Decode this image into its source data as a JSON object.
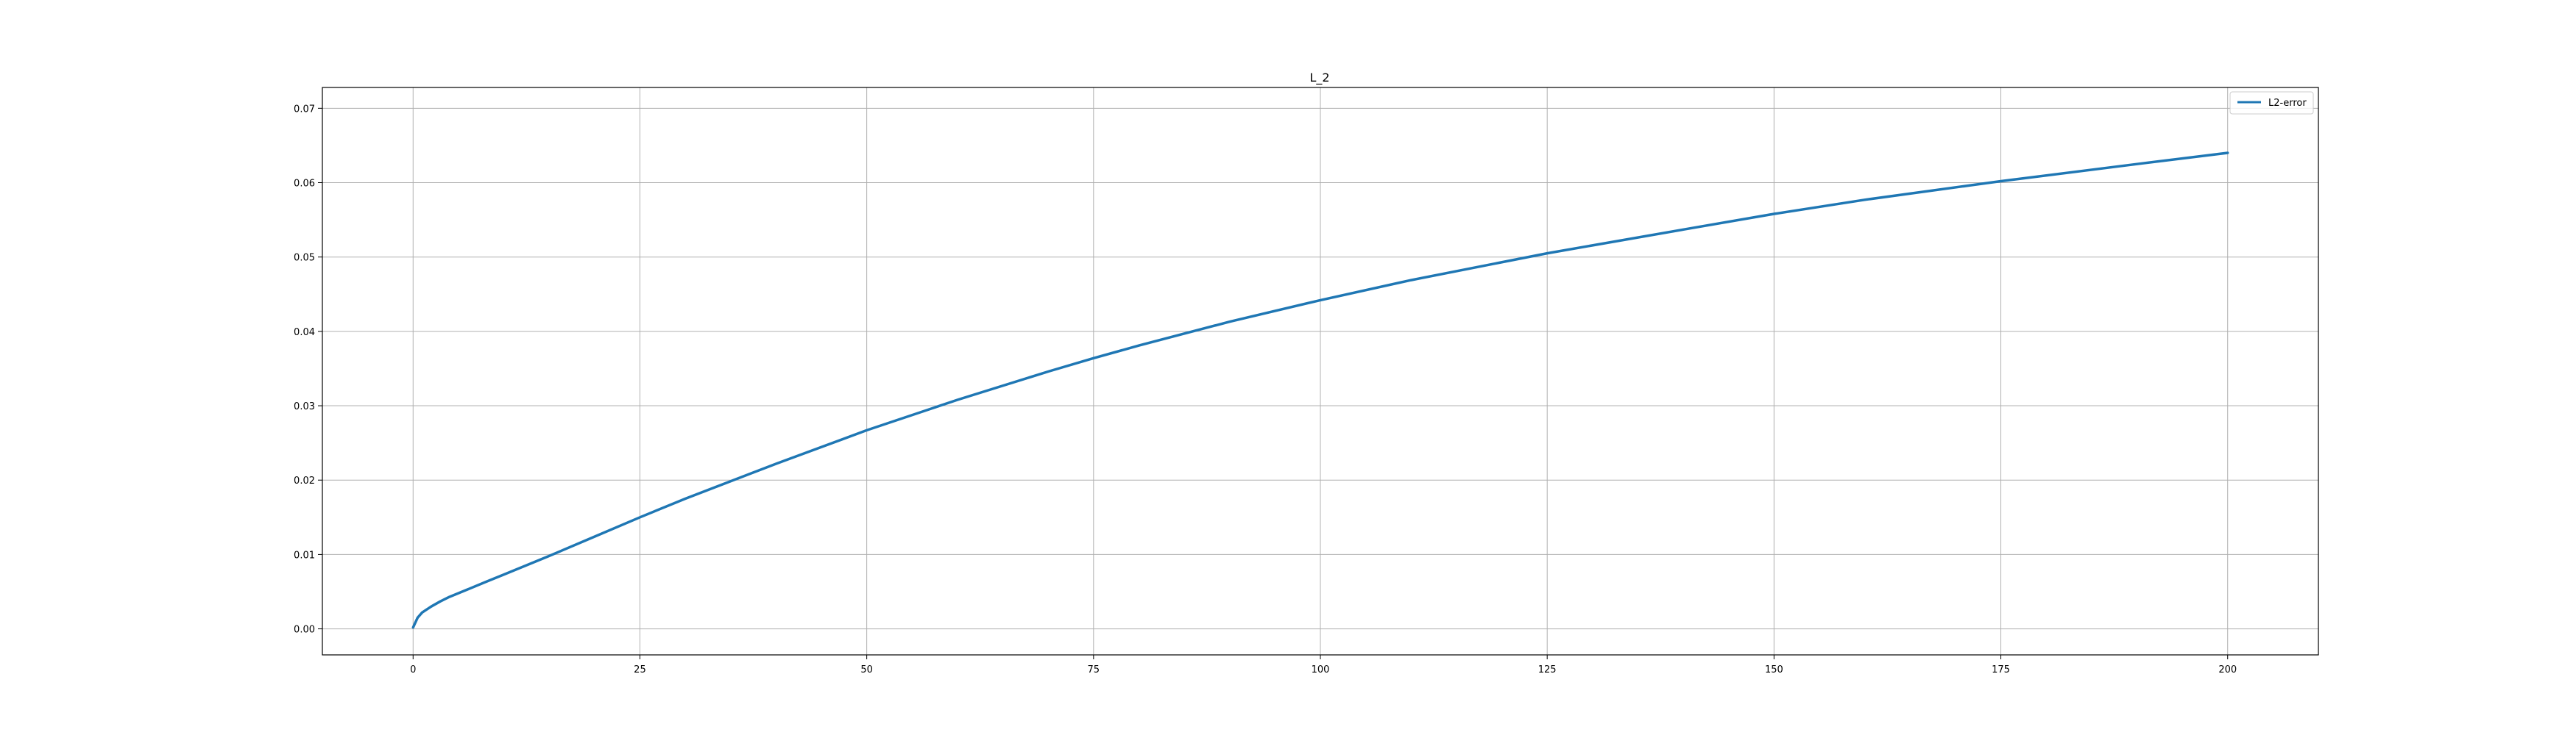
{
  "chart_data": {
    "type": "line",
    "title": "L_2",
    "xlabel": "",
    "ylabel": "",
    "xlim": [
      -10,
      210
    ],
    "ylim": [
      -0.0035,
      0.0728
    ],
    "xticks": [
      0,
      25,
      50,
      75,
      100,
      125,
      150,
      175,
      200
    ],
    "xtick_labels": [
      "0",
      "25",
      "50",
      "75",
      "100",
      "125",
      "150",
      "175",
      "200"
    ],
    "yticks": [
      0.0,
      0.01,
      0.02,
      0.03,
      0.04,
      0.05,
      0.06,
      0.07
    ],
    "ytick_labels": [
      "0.00",
      "0.01",
      "0.02",
      "0.03",
      "0.04",
      "0.05",
      "0.06",
      "0.07"
    ],
    "grid": true,
    "legend_position": "top-right",
    "series": [
      {
        "name": "L2-error",
        "color": "#1f77b4",
        "x": [
          0,
          0.5,
          1,
          2,
          3,
          4,
          6,
          8,
          10,
          15,
          20,
          25,
          30,
          40,
          50,
          60,
          70,
          75,
          80,
          90,
          100,
          110,
          125,
          140,
          150,
          160,
          175,
          190,
          200
        ],
        "y": [
          0.0002,
          0.0015,
          0.0022,
          0.003,
          0.0037,
          0.0043,
          0.0053,
          0.0063,
          0.0073,
          0.0098,
          0.0124,
          0.015,
          0.0175,
          0.0222,
          0.0267,
          0.0308,
          0.0346,
          0.0364,
          0.0381,
          0.0413,
          0.0442,
          0.0469,
          0.0505,
          0.0537,
          0.0558,
          0.0577,
          0.0602,
          0.0625,
          0.064
        ]
      }
    ]
  }
}
